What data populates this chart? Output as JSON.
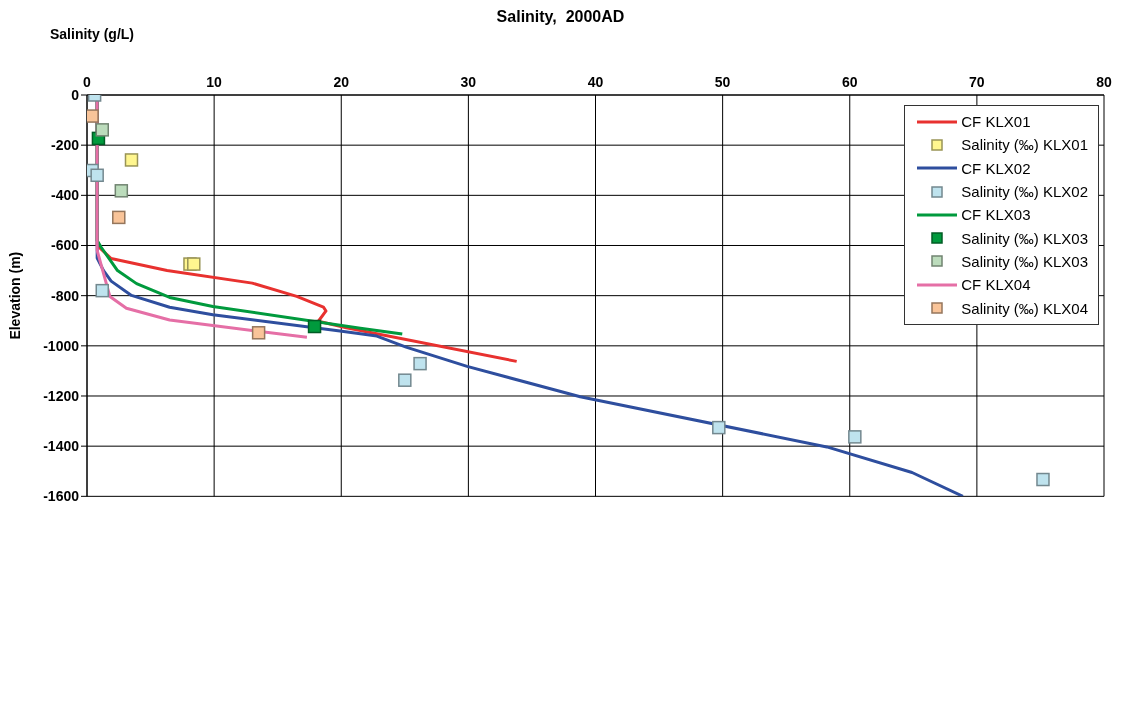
{
  "chart_data": {
    "type": "line",
    "title": "Salinity,  2000AD",
    "xlabel": "Salinity (g/L)",
    "ylabel": "Elevation (m)",
    "xlim": [
      0,
      80
    ],
    "xticks": [
      0,
      10,
      20,
      30,
      40,
      50,
      60,
      70,
      80
    ],
    "ylim": [
      -1600,
      0
    ],
    "yticks": [
      0,
      -200,
      -400,
      -600,
      -800,
      -1000,
      -1200,
      -1400,
      -1600
    ],
    "grid": true,
    "legend": "top right",
    "marker": "square",
    "series": [
      {
        "name": "CF KLX01",
        "marker": "none",
        "color": "#e8312f",
        "x": [
          0.8,
          0.8,
          1.9,
          6.3,
          13.0,
          16.5,
          18.6,
          18.8,
          18.2,
          20.4,
          33.8
        ],
        "values": [
          0,
          -600,
          -652,
          -700,
          -750,
          -803,
          -846,
          -861,
          -902,
          -928,
          -1062
        ]
      },
      {
        "name": "Salinity (‰) KLX01",
        "type": "scatter",
        "color": "#fff68f",
        "x": [
          3.5,
          8.1,
          8.4
        ],
        "values": [
          -259,
          -674,
          -674
        ]
      },
      {
        "name": "CF KLX02",
        "marker": "none",
        "color": "#2e4e9e",
        "x": [
          0.8,
          0.8,
          1.3,
          1.9,
          3.5,
          6.5,
          9.9,
          19.9,
          22.8,
          25.1,
          29.9,
          38.8,
          58.2,
          64.9,
          68.9
        ],
        "values": [
          0,
          -650,
          -700,
          -742,
          -799,
          -846,
          -876,
          -941,
          -961,
          -1005,
          -1082,
          -1203,
          -1403,
          -1505,
          -1600
        ]
      },
      {
        "name": "Salinity (‰) KLX02",
        "type": "scatter",
        "color": "#bfe3ee",
        "x": [
          0.6,
          0.4,
          0.8,
          1.2,
          26.2,
          25.0,
          49.7,
          60.4,
          75.2
        ],
        "values": [
          0,
          -301,
          -320,
          -780,
          -1071,
          -1137,
          -1326,
          -1363,
          -1533
        ]
      },
      {
        "name": "CF KLX03",
        "marker": "none",
        "color": "#009a3d",
        "x": [
          0.8,
          0.8,
          1.1,
          2.4,
          3.9,
          6.5,
          9.9,
          21.5,
          24.8
        ],
        "values": [
          0,
          -580,
          -606,
          -700,
          -752,
          -807,
          -843,
          -930,
          -953
        ]
      },
      {
        "name": "Salinity (‰) KLX03",
        "type": "scatter",
        "color": "#009a3d",
        "x": [
          0.9,
          17.9
        ],
        "values": [
          -173,
          -923
        ]
      },
      {
        "name": "Salinity (‰) KLX03",
        "type": "scatter",
        "color": "#bcdcbc",
        "x": [
          1.2,
          2.7
        ],
        "values": [
          -139,
          -382
        ]
      },
      {
        "name": "CF KLX04",
        "marker": "none",
        "color": "#e56fa6",
        "x": [
          0.8,
          0.8,
          1.8,
          3.1,
          6.5,
          9.9,
          17.3
        ],
        "values": [
          0,
          -620,
          -803,
          -850,
          -897,
          -919,
          -966
        ]
      },
      {
        "name": "Salinity (‰) KLX04",
        "type": "scatter",
        "color": "#f9c499",
        "x": [
          0.4,
          2.5,
          13.5
        ],
        "values": [
          -84,
          -488,
          -948
        ]
      }
    ]
  }
}
